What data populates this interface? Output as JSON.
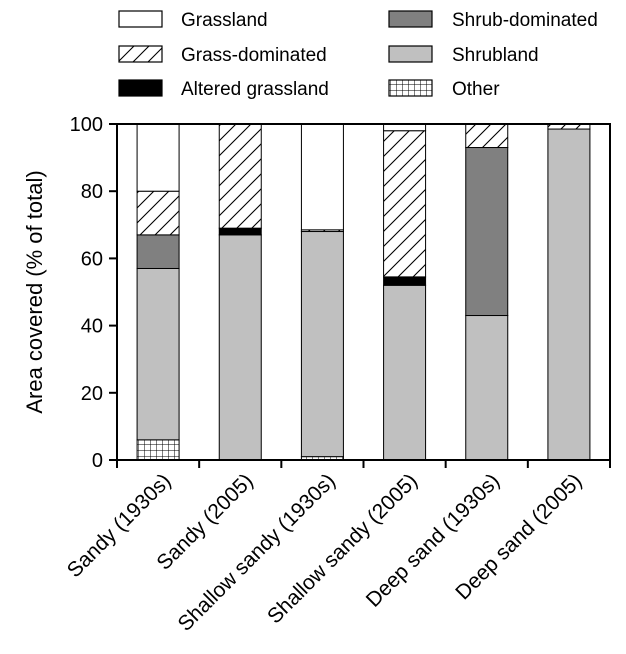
{
  "chart_data": {
    "type": "bar",
    "stacked": true,
    "title": "",
    "xlabel": "",
    "ylabel": "Area covered (% of total)",
    "ylim": [
      0,
      100
    ],
    "yticks": [
      0,
      20,
      40,
      60,
      80,
      100
    ],
    "grid": false,
    "legend_position": "top",
    "categories": [
      "Sandy (1930s)",
      "Sandy (2005)",
      "Shallow sandy (1930s)",
      "Shallow sandy (2005)",
      "Deep sand (1930s)",
      "Deep sand (2005)"
    ],
    "series": [
      {
        "name": "Other",
        "values": [
          6,
          0,
          1,
          0,
          0,
          0
        ]
      },
      {
        "name": "Shrubland",
        "values": [
          51,
          67,
          67,
          52,
          43,
          98.5
        ]
      },
      {
        "name": "Shrub-dominated",
        "values": [
          10,
          0,
          0,
          0,
          50,
          0
        ]
      },
      {
        "name": "Altered grassland",
        "values": [
          0,
          2,
          0,
          2.5,
          0,
          0
        ]
      },
      {
        "name": "Grass-dominated",
        "values": [
          13,
          31,
          0.5,
          43.5,
          7,
          1.5
        ]
      },
      {
        "name": "Grassland",
        "values": [
          20,
          0,
          31.5,
          2,
          0,
          0
        ]
      }
    ],
    "legend_order": [
      "Grassland",
      "Grass-dominated",
      "Altered grassland",
      "Shrub-dominated",
      "Shrubland",
      "Other"
    ]
  },
  "colors": {
    "Grassland": "#ffffff",
    "Grass-dominated": "#ffffff",
    "Altered grassland": "#000000",
    "Shrub-dominated": "#808080",
    "Shrubland": "#c0c0c0",
    "Other": "#ffffff",
    "axis": "#000000"
  },
  "patterns": {
    "Grass-dominated": "diagonal-hatch",
    "Other": "grid-hatch"
  }
}
